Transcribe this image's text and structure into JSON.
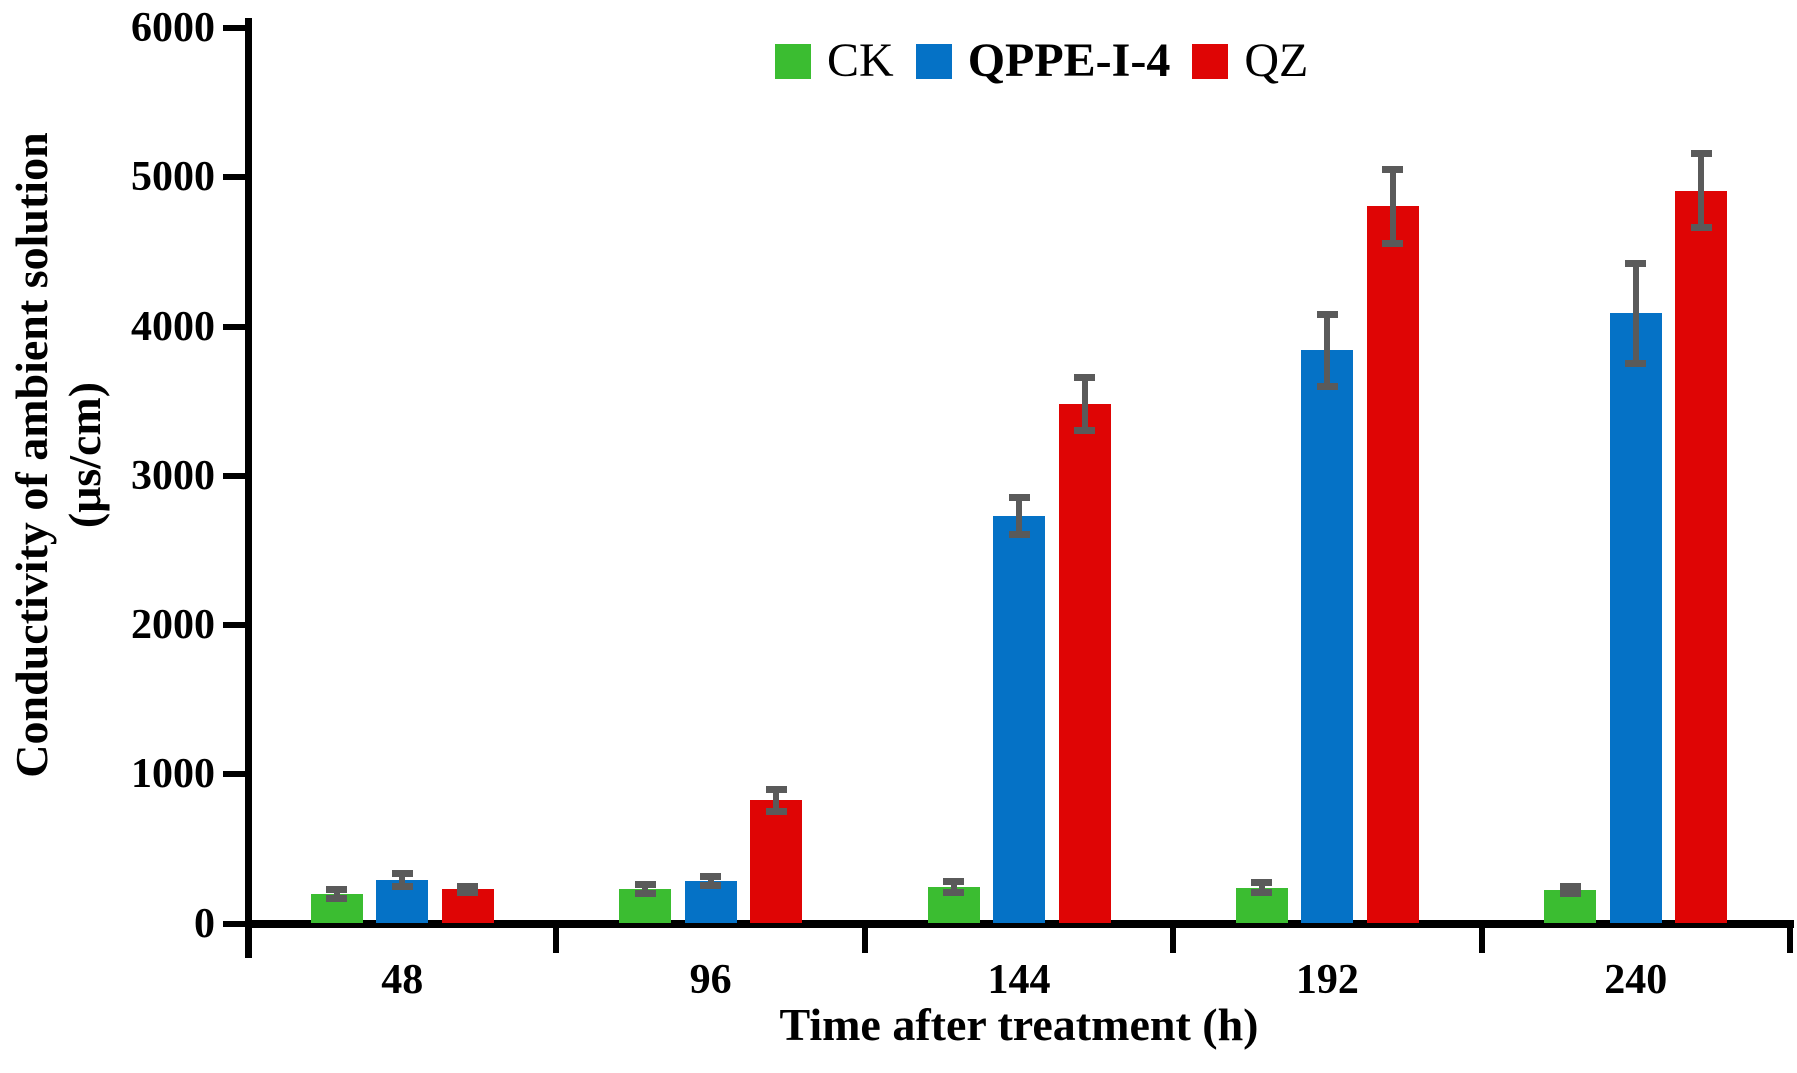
{
  "figure": {
    "background": "#ffffff",
    "axis_color": "#000000",
    "error_bar_color": "#5a5a5a"
  },
  "chart_data": {
    "type": "bar",
    "title": "",
    "xlabel": "Time after treatment (h)",
    "ylabel_line1": "Conductivity of ambient solution",
    "ylabel_line2": "(μs/cm)",
    "categories": [
      "48",
      "96",
      "144",
      "192",
      "240"
    ],
    "series": [
      {
        "name": "CK",
        "color": "#3bbd31",
        "bold_legend": false,
        "values": [
          200,
          230,
          245,
          240,
          225
        ],
        "errors": [
          30,
          30,
          35,
          33,
          25
        ]
      },
      {
        "name": "QPPE-I-4",
        "color": "#0572c6",
        "bold_legend": true,
        "values": [
          290,
          285,
          2730,
          3840,
          4090
        ],
        "errors": [
          45,
          28,
          125,
          240,
          335
        ]
      },
      {
        "name": "QZ",
        "color": "#df0505",
        "bold_legend": false,
        "values": [
          230,
          825,
          3480,
          4805,
          4910
        ],
        "errors": [
          20,
          75,
          180,
          250,
          250
        ]
      }
    ],
    "ylim": [
      0,
      6000
    ],
    "ytick_step": 1000,
    "yticks": [
      "0",
      "1000",
      "2000",
      "3000",
      "4000",
      "5000",
      "6000"
    ],
    "grid": false,
    "legend_position": "top-center",
    "error_bar_color": "#5a5a5a",
    "axis_color": "#000000"
  }
}
